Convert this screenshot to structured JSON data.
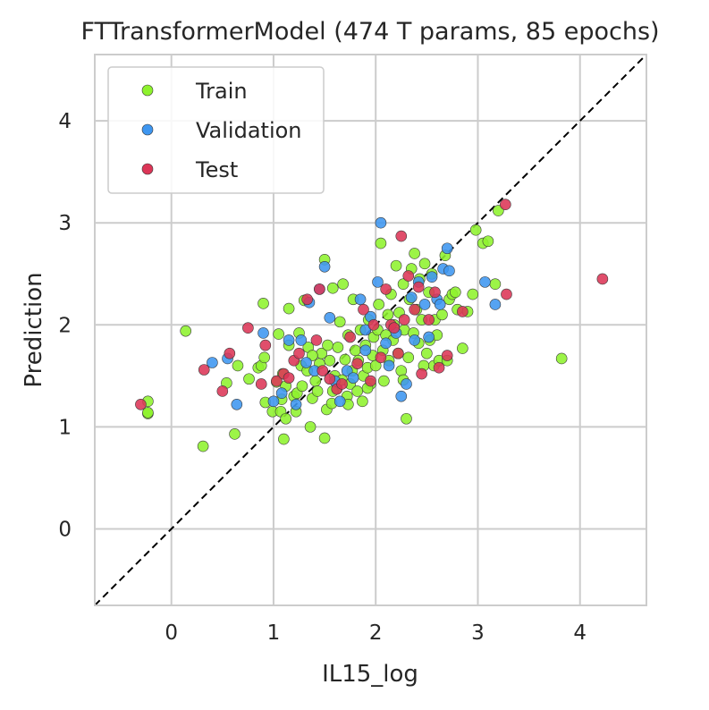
{
  "chart_data": {
    "type": "scatter",
    "title": "FTTransformerModel (474 T params, 85 epochs)",
    "xlabel": "IL15_log",
    "ylabel": "Prediction",
    "xlim": [
      -0.75,
      4.65
    ],
    "ylim": [
      -0.75,
      4.65
    ],
    "xticks": [
      "0",
      "1",
      "2",
      "3",
      "4"
    ],
    "yticks": [
      "0",
      "1",
      "2",
      "3",
      "4"
    ],
    "grid": true,
    "legend_position": "top-left",
    "diagonal": "y = x (dashed, black)",
    "series": [
      {
        "name": "Train",
        "color": "#8ef22d",
        "points": [
          [
            -0.23,
            1.25
          ],
          [
            -0.23,
            1.13
          ],
          [
            -0.23,
            1.14
          ],
          [
            0.14,
            1.94
          ],
          [
            0.31,
            0.81
          ],
          [
            0.54,
            1.43
          ],
          [
            0.62,
            0.93
          ],
          [
            0.65,
            1.6
          ],
          [
            0.76,
            1.47
          ],
          [
            0.85,
            1.58
          ],
          [
            0.88,
            1.6
          ],
          [
            0.91,
            1.68
          ],
          [
            0.9,
            2.21
          ],
          [
            0.92,
            1.24
          ],
          [
            0.99,
            1.15
          ],
          [
            1.03,
            1.44
          ],
          [
            1.05,
            1.91
          ],
          [
            1.07,
            1.15
          ],
          [
            1.08,
            1.27
          ],
          [
            1.09,
            1.52
          ],
          [
            1.1,
            0.88
          ],
          [
            1.12,
            1.4
          ],
          [
            1.15,
            1.8
          ],
          [
            1.15,
            2.16
          ],
          [
            1.2,
            1.3
          ],
          [
            1.22,
            1.15
          ],
          [
            1.23,
            1.33
          ],
          [
            1.25,
            1.92
          ],
          [
            1.27,
            1.6
          ],
          [
            1.28,
            1.4
          ],
          [
            1.3,
            2.24
          ],
          [
            1.33,
            1.55
          ],
          [
            1.34,
            1.78
          ],
          [
            1.36,
            1.0
          ],
          [
            1.38,
            1.28
          ],
          [
            1.41,
            1.45
          ],
          [
            1.43,
            1.35
          ],
          [
            1.45,
            1.62
          ],
          [
            1.47,
            1.72
          ],
          [
            1.5,
            0.89
          ],
          [
            1.5,
            2.64
          ],
          [
            1.52,
            1.17
          ],
          [
            1.53,
            1.8
          ],
          [
            1.55,
            1.65
          ],
          [
            1.57,
            1.23
          ],
          [
            1.58,
            2.36
          ],
          [
            1.6,
            1.5
          ],
          [
            1.62,
            1.38
          ],
          [
            1.63,
            1.78
          ],
          [
            1.65,
            2.03
          ],
          [
            1.67,
            1.46
          ],
          [
            1.68,
            2.4
          ],
          [
            1.7,
            1.66
          ],
          [
            1.72,
            1.3
          ],
          [
            1.73,
            1.9
          ],
          [
            1.75,
            1.42
          ],
          [
            1.77,
            1.55
          ],
          [
            1.78,
            2.25
          ],
          [
            1.8,
            1.75
          ],
          [
            1.82,
            1.35
          ],
          [
            1.83,
            1.65
          ],
          [
            1.85,
            1.95
          ],
          [
            1.87,
            1.25
          ],
          [
            1.88,
            1.5
          ],
          [
            1.9,
            1.8
          ],
          [
            1.92,
            1.58
          ],
          [
            1.93,
            2.05
          ],
          [
            1.95,
            1.42
          ],
          [
            1.97,
            1.7
          ],
          [
            1.98,
            1.88
          ],
          [
            2.0,
            1.6
          ],
          [
            2.02,
            1.95
          ],
          [
            2.03,
            2.2
          ],
          [
            2.05,
            2.8
          ],
          [
            2.07,
            1.75
          ],
          [
            2.08,
            1.45
          ],
          [
            2.1,
            1.9
          ],
          [
            2.12,
            2.1
          ],
          [
            2.13,
            1.65
          ],
          [
            2.15,
            2.3
          ],
          [
            2.17,
            1.85
          ],
          [
            2.18,
            2.0
          ],
          [
            2.2,
            2.58
          ],
          [
            2.22,
            1.72
          ],
          [
            2.23,
            2.12
          ],
          [
            2.25,
            1.55
          ],
          [
            2.27,
            2.4
          ],
          [
            2.28,
            1.95
          ],
          [
            2.3,
            1.08
          ],
          [
            2.32,
            1.68
          ],
          [
            2.33,
            2.25
          ],
          [
            2.35,
            2.55
          ],
          [
            2.37,
            1.92
          ],
          [
            2.38,
            2.7
          ],
          [
            2.4,
            2.15
          ],
          [
            2.42,
            1.82
          ],
          [
            2.43,
            2.45
          ],
          [
            2.45,
            2.05
          ],
          [
            2.47,
            1.6
          ],
          [
            2.48,
            2.6
          ],
          [
            2.5,
            1.72
          ],
          [
            2.52,
            2.32
          ],
          [
            2.53,
            1.85
          ],
          [
            2.55,
            2.5
          ],
          [
            2.57,
            1.6
          ],
          [
            2.58,
            2.05
          ],
          [
            2.6,
            1.9
          ],
          [
            2.62,
            1.65
          ],
          [
            2.65,
            2.1
          ],
          [
            2.68,
            2.68
          ],
          [
            2.7,
            1.65
          ],
          [
            2.72,
            2.25
          ],
          [
            2.75,
            2.3
          ],
          [
            2.78,
            2.32
          ],
          [
            2.8,
            2.15
          ],
          [
            2.85,
            1.77
          ],
          [
            2.9,
            2.13
          ],
          [
            2.95,
            2.3
          ],
          [
            2.98,
            2.93
          ],
          [
            3.05,
            2.8
          ],
          [
            3.1,
            2.82
          ],
          [
            3.17,
            2.4
          ],
          [
            3.2,
            3.12
          ],
          [
            3.82,
            1.67
          ],
          [
            1.38,
            1.7
          ],
          [
            1.58,
            1.35
          ],
          [
            1.73,
            1.22
          ],
          [
            2.27,
            1.46
          ],
          [
            1.92,
            1.38
          ],
          [
            1.12,
            1.08
          ]
        ]
      },
      {
        "name": "Validation",
        "color": "#3e96f0",
        "points": [
          [
            0.4,
            1.63
          ],
          [
            0.55,
            1.67
          ],
          [
            0.64,
            1.22
          ],
          [
            0.9,
            1.92
          ],
          [
            1.0,
            1.25
          ],
          [
            1.08,
            1.33
          ],
          [
            1.15,
            1.85
          ],
          [
            1.22,
            1.22
          ],
          [
            1.27,
            1.85
          ],
          [
            1.32,
            1.63
          ],
          [
            1.35,
            2.22
          ],
          [
            1.4,
            1.55
          ],
          [
            1.45,
            2.35
          ],
          [
            1.5,
            2.57
          ],
          [
            1.55,
            2.07
          ],
          [
            1.65,
            1.25
          ],
          [
            1.72,
            1.55
          ],
          [
            1.78,
            1.48
          ],
          [
            1.85,
            2.25
          ],
          [
            1.9,
            1.75
          ],
          [
            1.95,
            2.08
          ],
          [
            2.02,
            2.42
          ],
          [
            2.05,
            3.0
          ],
          [
            2.1,
            1.82
          ],
          [
            2.13,
            1.6
          ],
          [
            2.2,
            1.92
          ],
          [
            2.25,
            1.3
          ],
          [
            2.3,
            1.42
          ],
          [
            2.35,
            2.27
          ],
          [
            2.38,
            1.85
          ],
          [
            2.42,
            2.42
          ],
          [
            2.48,
            2.2
          ],
          [
            2.52,
            1.88
          ],
          [
            2.55,
            2.47
          ],
          [
            2.6,
            2.25
          ],
          [
            2.63,
            2.2
          ],
          [
            2.66,
            2.55
          ],
          [
            2.7,
            2.75
          ],
          [
            2.72,
            2.53
          ],
          [
            3.07,
            2.42
          ],
          [
            3.17,
            2.2
          ],
          [
            1.6,
            1.45
          ],
          [
            1.9,
            1.95
          ]
        ]
      },
      {
        "name": "Test",
        "color": "#dc3557",
        "points": [
          [
            -0.3,
            1.22
          ],
          [
            0.32,
            1.56
          ],
          [
            0.5,
            1.35
          ],
          [
            0.57,
            1.72
          ],
          [
            0.75,
            1.97
          ],
          [
            0.88,
            1.42
          ],
          [
            0.92,
            1.8
          ],
          [
            1.03,
            1.45
          ],
          [
            1.1,
            1.52
          ],
          [
            1.15,
            1.48
          ],
          [
            1.2,
            1.65
          ],
          [
            1.25,
            1.72
          ],
          [
            1.33,
            2.25
          ],
          [
            1.42,
            1.85
          ],
          [
            1.48,
            1.55
          ],
          [
            1.55,
            1.47
          ],
          [
            1.62,
            1.37
          ],
          [
            1.67,
            1.42
          ],
          [
            1.75,
            1.88
          ],
          [
            1.82,
            1.62
          ],
          [
            1.88,
            2.15
          ],
          [
            1.95,
            1.45
          ],
          [
            1.98,
            2.0
          ],
          [
            2.05,
            1.68
          ],
          [
            2.1,
            2.35
          ],
          [
            2.15,
            2.0
          ],
          [
            2.18,
            1.97
          ],
          [
            2.22,
            1.72
          ],
          [
            2.25,
            2.87
          ],
          [
            2.28,
            2.05
          ],
          [
            2.32,
            2.48
          ],
          [
            2.38,
            2.15
          ],
          [
            2.42,
            2.37
          ],
          [
            2.45,
            1.52
          ],
          [
            2.52,
            2.05
          ],
          [
            2.58,
            2.32
          ],
          [
            2.62,
            1.58
          ],
          [
            2.7,
            1.7
          ],
          [
            2.85,
            2.13
          ],
          [
            3.27,
            3.18
          ],
          [
            3.28,
            2.3
          ],
          [
            4.22,
            2.45
          ],
          [
            1.45,
            2.35
          ]
        ]
      }
    ]
  }
}
